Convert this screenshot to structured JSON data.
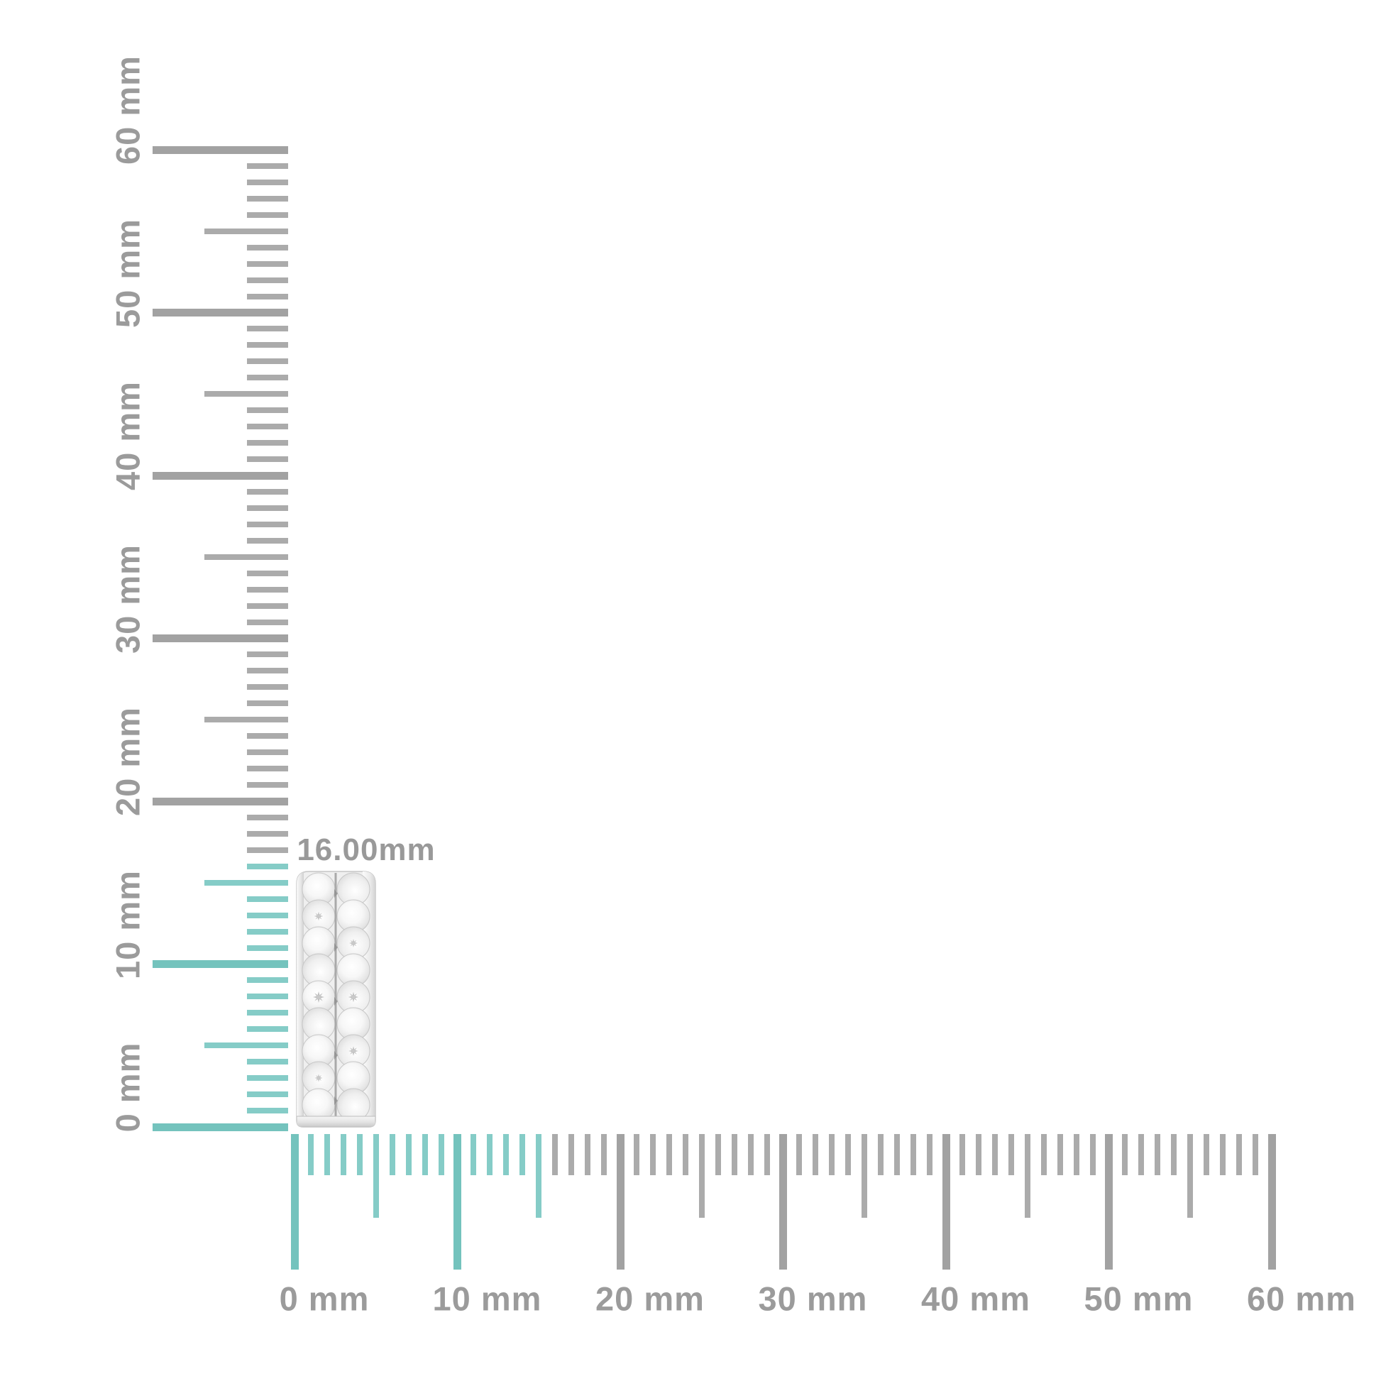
{
  "page": {
    "background": "#FFFFFF"
  },
  "dimension_label": {
    "text": "16.00mm"
  },
  "item": {
    "description": "Pave diamond hoop earring shown in side profile with two rows of round stones, standing at the ruler origin",
    "measured_height_mm": 16.0
  },
  "rulers": {
    "unit": "mm",
    "range_mm": [
      0,
      60
    ],
    "tick_step_mm": 1,
    "half_step_mm": 5,
    "label_step_mm": 10,
    "vertical": {
      "labels": [
        "0 mm",
        "10 mm",
        "20 mm",
        "30 mm",
        "40 mm",
        "50 mm",
        "60 mm"
      ],
      "highlight_max_mm": 16
    },
    "horizontal": {
      "labels": [
        "0 mm",
        "10 mm",
        "20 mm",
        "30 mm",
        "40 mm",
        "50 mm",
        "60 mm"
      ],
      "highlight_max_mm": 15
    },
    "colors": {
      "tick_gray": "#ABABAB",
      "tick_gray_major": "#A2A2A2",
      "tick_teal": "#85CCC7",
      "tick_teal_major": "#74C3BD",
      "label_gray": "#9B9B9B"
    }
  }
}
